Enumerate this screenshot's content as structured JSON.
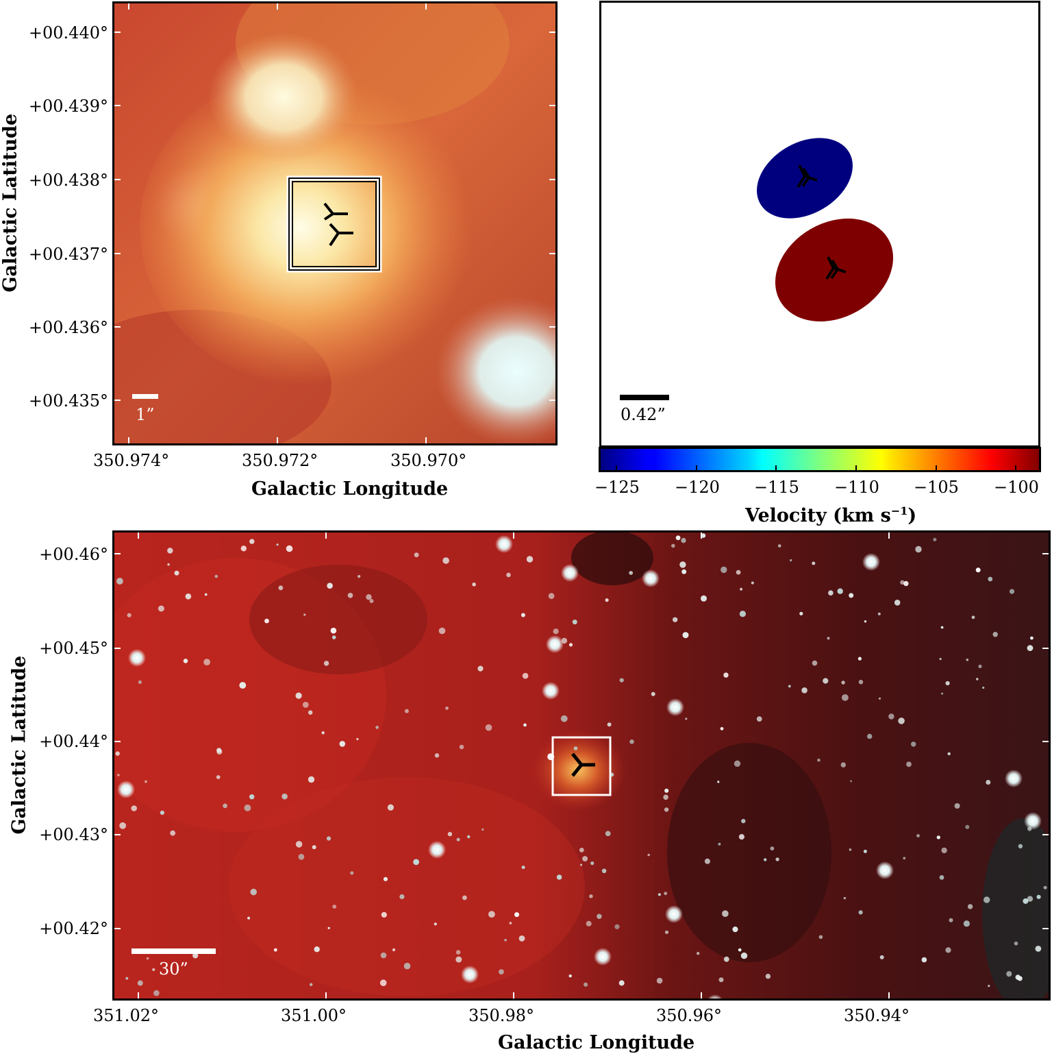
{
  "panel_tl": {
    "y_ticks": [
      "+00.440°",
      "+00.439°",
      "+00.438°",
      "+00.437°",
      "+00.436°",
      "+00.435°"
    ],
    "x_ticks": [
      "350.974°",
      "350.972°",
      "350.970°"
    ],
    "xlabel": "Galactic Longitude",
    "ylabel": "Galactic Latitude",
    "scalebar_label": "1”"
  },
  "panel_tr": {
    "scalebar_label": "0.42”",
    "colorbar_ticks": [
      "−125",
      "−120",
      "−115",
      "−110",
      "−105",
      "−100"
    ],
    "colorbar_label": "Velocity (km s",
    "colorbar_label_sup": "−1",
    "colorbar_label_end": ")",
    "colors": {
      "blue_spot": "#00007f",
      "red_spot": "#7f0000"
    }
  },
  "panel_bottom": {
    "y_ticks": [
      "+00.46°",
      "+00.45°",
      "+00.44°",
      "+00.43°",
      "+00.42°"
    ],
    "x_ticks": [
      "351.02°",
      "351.00°",
      "350.98°",
      "350.96°",
      "350.94°"
    ],
    "xlabel": "Galactic Longitude",
    "ylabel": "Galactic Latitude",
    "scalebar_label": "30”"
  }
}
